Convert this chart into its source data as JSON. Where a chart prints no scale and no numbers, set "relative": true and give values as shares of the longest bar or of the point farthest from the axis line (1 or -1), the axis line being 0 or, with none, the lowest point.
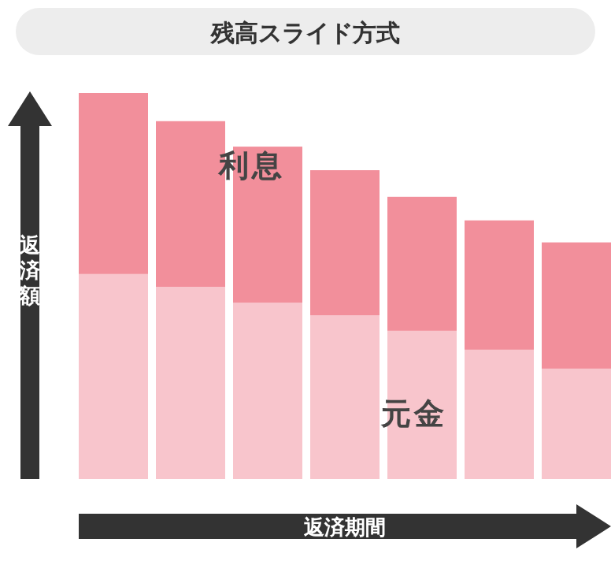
{
  "chart_data": {
    "type": "bar",
    "title": "残高スライド方式",
    "xlabel": "返済期間",
    "ylabel": "返済額",
    "categories": [
      null,
      null,
      null,
      null,
      null,
      null,
      null
    ],
    "stacked": true,
    "relative": true,
    "series": [
      {
        "name": "元金",
        "color": "#f8c5cc",
        "values": [
          0.531,
          0.498,
          0.457,
          0.424,
          0.384,
          0.335,
          0.286
        ]
      },
      {
        "name": "利息",
        "color": "#f28f9b",
        "values": [
          0.469,
          0.429,
          0.404,
          0.376,
          0.347,
          0.335,
          0.327
        ]
      }
    ]
  }
}
